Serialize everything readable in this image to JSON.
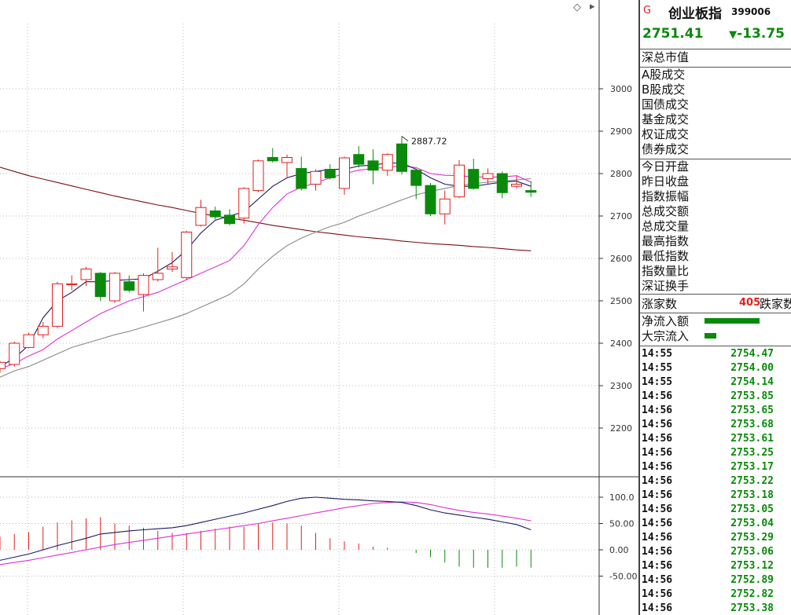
{
  "header": {
    "flag": "G",
    "name": "创业板指",
    "code": "399006",
    "price": "2751.41",
    "change": "-13.75",
    "change_arrow": "▼"
  },
  "labels": {
    "group1": [
      "深总市值"
    ],
    "group2": [
      "A股成交",
      "B股成交",
      "国债成交",
      "基金成交",
      "权证成交",
      "债券成交"
    ],
    "group3": [
      "今日开盘",
      "昨日收盘",
      "指数振幅",
      "总成交额",
      "总成交量",
      "最高指数",
      "最低指数",
      "指数量比",
      "深证换手"
    ],
    "advance_label": "涨家数",
    "advance_value": "405",
    "decline_label": "跌家数",
    "flow": [
      {
        "label": "净流入额",
        "value": 1.0
      },
      {
        "label": "大宗流入",
        "value": 0.22
      }
    ]
  },
  "ticks": [
    {
      "time": "14:55",
      "price": "2754.47"
    },
    {
      "time": "14:55",
      "price": "2754.00"
    },
    {
      "time": "14:55",
      "price": "2754.14"
    },
    {
      "time": "14:56",
      "price": "2753.85"
    },
    {
      "time": "14:56",
      "price": "2753.65"
    },
    {
      "time": "14:56",
      "price": "2753.68"
    },
    {
      "time": "14:56",
      "price": "2753.61"
    },
    {
      "time": "14:56",
      "price": "2753.25"
    },
    {
      "time": "14:56",
      "price": "2753.17"
    },
    {
      "time": "14:56",
      "price": "2753.22"
    },
    {
      "time": "14:56",
      "price": "2753.18"
    },
    {
      "time": "14:56",
      "price": "2753.05"
    },
    {
      "time": "14:56",
      "price": "2753.04"
    },
    {
      "time": "14:56",
      "price": "2753.29"
    },
    {
      "time": "14:56",
      "price": "2753.06"
    },
    {
      "time": "14:56",
      "price": "2753.12"
    },
    {
      "time": "14:56",
      "price": "2752.89"
    },
    {
      "time": "14:56",
      "price": "2752.82"
    },
    {
      "time": "14:56",
      "price": "2753.38"
    }
  ],
  "colors": {
    "up": "#e0201f",
    "down": "#0a8a0a",
    "ma5": "#1a1a60",
    "ma10": "#e030d0",
    "ma20": "#888888",
    "ma60": "#7a1010",
    "macd_dif": "#1a1a60",
    "macd_dea": "#e030d0"
  },
  "chart_data": {
    "type": "candlestick",
    "y_ticks": [
      "3000",
      "2900",
      "2800",
      "2700",
      "2600",
      "2500",
      "2400",
      "2300",
      "2200"
    ],
    "ylim": [
      2150,
      3080
    ],
    "max_label": "2887.72",
    "candles": [
      {
        "o": 2340,
        "c": 2355,
        "h": 2358,
        "l": 2330
      },
      {
        "o": 2350,
        "c": 2400,
        "h": 2404,
        "l": 2345
      },
      {
        "o": 2390,
        "c": 2420,
        "h": 2425,
        "l": 2388
      },
      {
        "o": 2420,
        "c": 2440,
        "h": 2450,
        "l": 2412
      },
      {
        "o": 2440,
        "c": 2540,
        "h": 2545,
        "l": 2436
      },
      {
        "o": 2538,
        "c": 2540,
        "h": 2560,
        "l": 2525
      },
      {
        "o": 2550,
        "c": 2575,
        "h": 2580,
        "l": 2535
      },
      {
        "o": 2565,
        "c": 2510,
        "h": 2568,
        "l": 2500
      },
      {
        "o": 2500,
        "c": 2565,
        "h": 2568,
        "l": 2495
      },
      {
        "o": 2545,
        "c": 2525,
        "h": 2560,
        "l": 2520
      },
      {
        "o": 2515,
        "c": 2560,
        "h": 2565,
        "l": 2475
      },
      {
        "o": 2550,
        "c": 2565,
        "h": 2625,
        "l": 2546
      },
      {
        "o": 2575,
        "c": 2580,
        "h": 2615,
        "l": 2568
      },
      {
        "o": 2555,
        "c": 2662,
        "h": 2665,
        "l": 2550
      },
      {
        "o": 2678,
        "c": 2720,
        "h": 2738,
        "l": 2675
      },
      {
        "o": 2712,
        "c": 2698,
        "h": 2722,
        "l": 2692
      },
      {
        "o": 2702,
        "c": 2682,
        "h": 2716,
        "l": 2678
      },
      {
        "o": 2695,
        "c": 2765,
        "h": 2768,
        "l": 2682
      },
      {
        "o": 2760,
        "c": 2830,
        "h": 2833,
        "l": 2756
      },
      {
        "o": 2838,
        "c": 2830,
        "h": 2860,
        "l": 2826
      },
      {
        "o": 2826,
        "c": 2838,
        "h": 2845,
        "l": 2792
      },
      {
        "o": 2812,
        "c": 2765,
        "h": 2840,
        "l": 2760
      },
      {
        "o": 2775,
        "c": 2805,
        "h": 2810,
        "l": 2760
      },
      {
        "o": 2810,
        "c": 2790,
        "h": 2822,
        "l": 2786
      },
      {
        "o": 2765,
        "c": 2837,
        "h": 2840,
        "l": 2750
      },
      {
        "o": 2845,
        "c": 2822,
        "h": 2865,
        "l": 2814
      },
      {
        "o": 2830,
        "c": 2808,
        "h": 2857,
        "l": 2775
      },
      {
        "o": 2808,
        "c": 2845,
        "h": 2848,
        "l": 2795
      },
      {
        "o": 2870,
        "c": 2805,
        "h": 2888,
        "l": 2798
      },
      {
        "o": 2808,
        "c": 2772,
        "h": 2812,
        "l": 2740
      },
      {
        "o": 2772,
        "c": 2705,
        "h": 2778,
        "l": 2700
      },
      {
        "o": 2705,
        "c": 2740,
        "h": 2760,
        "l": 2680
      },
      {
        "o": 2745,
        "c": 2820,
        "h": 2832,
        "l": 2742
      },
      {
        "o": 2810,
        "c": 2765,
        "h": 2835,
        "l": 2762
      },
      {
        "o": 2788,
        "c": 2800,
        "h": 2812,
        "l": 2775
      },
      {
        "o": 2800,
        "c": 2755,
        "h": 2805,
        "l": 2742
      },
      {
        "o": 2770,
        "c": 2775,
        "h": 2795,
        "l": 2765
      },
      {
        "o": 2760,
        "c": 2756,
        "h": 2782,
        "l": 2745
      }
    ],
    "ma5": [
      2345,
      2365,
      2395,
      2460,
      2500,
      2520,
      2545,
      2545,
      2548,
      2550,
      2552,
      2570,
      2590,
      2620,
      2660,
      2690,
      2700,
      2710,
      2740,
      2770,
      2790,
      2800,
      2805,
      2810,
      2810,
      2818,
      2820,
      2825,
      2825,
      2810,
      2790,
      2775,
      2770,
      2770,
      2775,
      2780,
      2782,
      2770
    ],
    "ma10": [
      2340,
      2352,
      2370,
      2385,
      2410,
      2430,
      2450,
      2470,
      2485,
      2500,
      2510,
      2520,
      2535,
      2550,
      2565,
      2580,
      2595,
      2630,
      2680,
      2720,
      2752,
      2768,
      2778,
      2790,
      2800,
      2808,
      2812,
      2815,
      2818,
      2814,
      2800,
      2796,
      2795,
      2792,
      2792,
      2792,
      2795,
      2780
    ],
    "ma20": [
      2320,
      2335,
      2345,
      2360,
      2375,
      2390,
      2400,
      2410,
      2420,
      2428,
      2438,
      2448,
      2458,
      2470,
      2485,
      2500,
      2515,
      2540,
      2575,
      2605,
      2630,
      2648,
      2662,
      2675,
      2685,
      2700,
      2712,
      2725,
      2738,
      2750,
      2758,
      2765,
      2772,
      2776,
      2780,
      2782,
      2785,
      2788
    ],
    "ma60": [
      2815,
      2805,
      2795,
      2787,
      2779,
      2771,
      2763,
      2755,
      2747,
      2740,
      2733,
      2726,
      2720,
      2713,
      2706,
      2700,
      2695,
      2690,
      2684,
      2678,
      2673,
      2668,
      2663,
      2659,
      2655,
      2651,
      2648,
      2645,
      2641,
      2638,
      2635,
      2633,
      2631,
      2628,
      2626,
      2623,
      2620,
      2618
    ],
    "macd": {
      "y_ticks": [
        "100.0",
        "50.00",
        "0.00",
        "-50.00"
      ],
      "ylim": [
        -75,
        118
      ],
      "dif": [
        -20,
        -14,
        -8,
        0,
        8,
        15,
        22,
        30,
        33,
        36,
        38,
        40,
        42,
        46,
        52,
        58,
        64,
        70,
        77,
        84,
        92,
        98,
        100,
        98,
        96,
        95,
        93,
        92,
        90,
        84,
        76,
        70,
        66,
        62,
        58,
        53,
        48,
        38
      ],
      "dea": [
        -28,
        -24,
        -20,
        -15,
        -10,
        -5,
        0,
        5,
        10,
        14,
        18,
        22,
        26,
        30,
        34,
        38,
        42,
        46,
        50,
        55,
        60,
        65,
        70,
        75,
        80,
        84,
        88,
        90,
        91,
        90,
        86,
        80,
        75,
        71,
        68,
        64,
        60,
        55
      ],
      "hist": [
        25,
        30,
        34,
        44,
        52,
        56,
        60,
        62,
        50,
        46,
        42,
        36,
        32,
        32,
        36,
        40,
        44,
        44,
        50,
        52,
        50,
        46,
        32,
        22,
        16,
        12,
        6,
        4,
        0,
        -6,
        -14,
        -24,
        -32,
        -34,
        -34,
        -34,
        -32,
        -34
      ]
    }
  }
}
